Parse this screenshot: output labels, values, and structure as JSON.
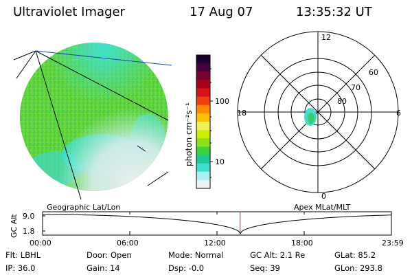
{
  "header": {
    "instrument": "Ultraviolet Imager",
    "date": "17 Aug 07",
    "time": "13:35:32 UT"
  },
  "colorbar": {
    "label": "photon cm⁻²s⁻¹",
    "ticks": [
      "100",
      "10"
    ],
    "colors": [
      "#1a0030",
      "#4b0040",
      "#7a0030",
      "#a8001a",
      "#d4141a",
      "#f04010",
      "#ff8c00",
      "#ffc000",
      "#f0f05a",
      "#c8f000",
      "#8ee01c",
      "#3cd23c",
      "#1ec89a",
      "#40e0d0",
      "#a8f0f0",
      "#e8f4f4"
    ]
  },
  "labels": {
    "geo": "Geographic Lat/Lon",
    "apex": "Apex MLat/MLT"
  },
  "polar": {
    "mlt_labels": [
      "12",
      "18",
      "6",
      "0"
    ],
    "lat_labels": [
      "60",
      "70",
      "80"
    ]
  },
  "timeline": {
    "ylabel": "GC Alt",
    "ymax": "9.0",
    "ymin": "1.8",
    "x_ticks": [
      "00:00",
      "06:00",
      "12:00",
      "18:00",
      "23:59"
    ],
    "current_time_hours": 13.592,
    "perigee_hours": 13.6
  },
  "info": {
    "row1": [
      "Flt: LBHL",
      "Door: Open",
      "Mode: Normal",
      "GC Alt: 2.1 Re",
      "GLat:  85.2"
    ],
    "row2": [
      "IP: 36.0",
      "Gain: 14",
      "Dsp:   -0.0",
      "Seq: 39",
      "GLon: 293.8"
    ]
  }
}
